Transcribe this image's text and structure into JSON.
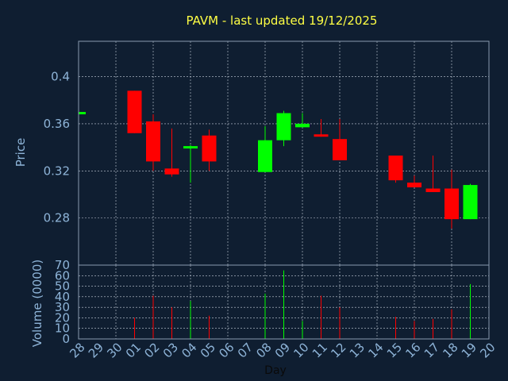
{
  "chart_data": [
    {
      "type": "candlestick",
      "title": "PAVM - last updated 19/12/2025",
      "xlabel": "",
      "ylabel": "Price",
      "ylim": [
        0.24,
        0.43
      ],
      "yticks": [
        "0.4",
        "0.36",
        "0.32",
        "0.28"
      ],
      "ytick_values": [
        0.4,
        0.36,
        0.32,
        0.28
      ],
      "grid": true,
      "candles": [
        {
          "day": "28",
          "open": 0.368,
          "close": 0.37,
          "high": 0.37,
          "low": 0.368,
          "dir": "up"
        },
        {
          "day": "01",
          "open": 0.388,
          "close": 0.352,
          "high": 0.388,
          "low": 0.352,
          "dir": "down"
        },
        {
          "day": "02",
          "open": 0.362,
          "close": 0.328,
          "high": 0.368,
          "low": 0.32,
          "dir": "down"
        },
        {
          "day": "03",
          "open": 0.322,
          "close": 0.317,
          "high": 0.356,
          "low": 0.315,
          "dir": "down"
        },
        {
          "day": "04",
          "open": 0.339,
          "close": 0.341,
          "high": 0.342,
          "low": 0.31,
          "dir": "up"
        },
        {
          "day": "05",
          "open": 0.35,
          "close": 0.328,
          "high": 0.355,
          "low": 0.32,
          "dir": "down"
        },
        {
          "day": "08",
          "open": 0.319,
          "close": 0.346,
          "high": 0.358,
          "low": 0.319,
          "dir": "up"
        },
        {
          "day": "09",
          "open": 0.346,
          "close": 0.369,
          "high": 0.371,
          "low": 0.341,
          "dir": "up"
        },
        {
          "day": "10",
          "open": 0.357,
          "close": 0.36,
          "high": 0.369,
          "low": 0.357,
          "dir": "up"
        },
        {
          "day": "11",
          "open": 0.351,
          "close": 0.349,
          "high": 0.364,
          "low": 0.349,
          "dir": "down"
        },
        {
          "day": "12",
          "open": 0.347,
          "close": 0.329,
          "high": 0.364,
          "low": 0.329,
          "dir": "down"
        },
        {
          "day": "15",
          "open": 0.333,
          "close": 0.312,
          "high": 0.333,
          "low": 0.31,
          "dir": "down"
        },
        {
          "day": "16",
          "open": 0.31,
          "close": 0.306,
          "high": 0.316,
          "low": 0.306,
          "dir": "down"
        },
        {
          "day": "17",
          "open": 0.305,
          "close": 0.302,
          "high": 0.333,
          "low": 0.302,
          "dir": "down"
        },
        {
          "day": "18",
          "open": 0.305,
          "close": 0.279,
          "high": 0.321,
          "low": 0.271,
          "dir": "down"
        },
        {
          "day": "19",
          "open": 0.279,
          "close": 0.308,
          "high": 0.309,
          "low": 0.279,
          "dir": "up"
        }
      ]
    },
    {
      "type": "bar",
      "xlabel": "Day",
      "ylabel": "Volume (0000)",
      "ylim": [
        0,
        70
      ],
      "yticks": [
        "70",
        "60",
        "50",
        "40",
        "30",
        "20",
        "10",
        "0"
      ],
      "ytick_values": [
        70,
        60,
        50,
        40,
        30,
        20,
        10,
        0
      ],
      "categories": [
        "28",
        "29",
        "30",
        "01",
        "02",
        "03",
        "04",
        "05",
        "06",
        "07",
        "08",
        "09",
        "10",
        "11",
        "12",
        "13",
        "14",
        "15",
        "16",
        "17",
        "18",
        "19",
        "20"
      ],
      "grid": true,
      "bars": [
        {
          "day": "01",
          "value": 20,
          "dir": "down"
        },
        {
          "day": "02",
          "value": 41,
          "dir": "down"
        },
        {
          "day": "03",
          "value": 30,
          "dir": "down"
        },
        {
          "day": "04",
          "value": 36,
          "dir": "up"
        },
        {
          "day": "05",
          "value": 22,
          "dir": "down"
        },
        {
          "day": "08",
          "value": 43,
          "dir": "up"
        },
        {
          "day": "09",
          "value": 65,
          "dir": "up"
        },
        {
          "day": "10",
          "value": 17,
          "dir": "up"
        },
        {
          "day": "11",
          "value": 41,
          "dir": "down"
        },
        {
          "day": "12",
          "value": 30,
          "dir": "down"
        },
        {
          "day": "15",
          "value": 21,
          "dir": "down"
        },
        {
          "day": "16",
          "value": 17,
          "dir": "down"
        },
        {
          "day": "17",
          "value": 19,
          "dir": "down"
        },
        {
          "day": "18",
          "value": 28,
          "dir": "down"
        },
        {
          "day": "19",
          "value": 52,
          "dir": "up"
        }
      ]
    }
  ],
  "colors": {
    "background": "#0f1e31",
    "frame": "#8a9ab0",
    "grid": "#c8d0dc",
    "title": "#ffff44",
    "axis_text": "#8eb4d8",
    "up": "#00ff00",
    "down": "#ff0000"
  }
}
